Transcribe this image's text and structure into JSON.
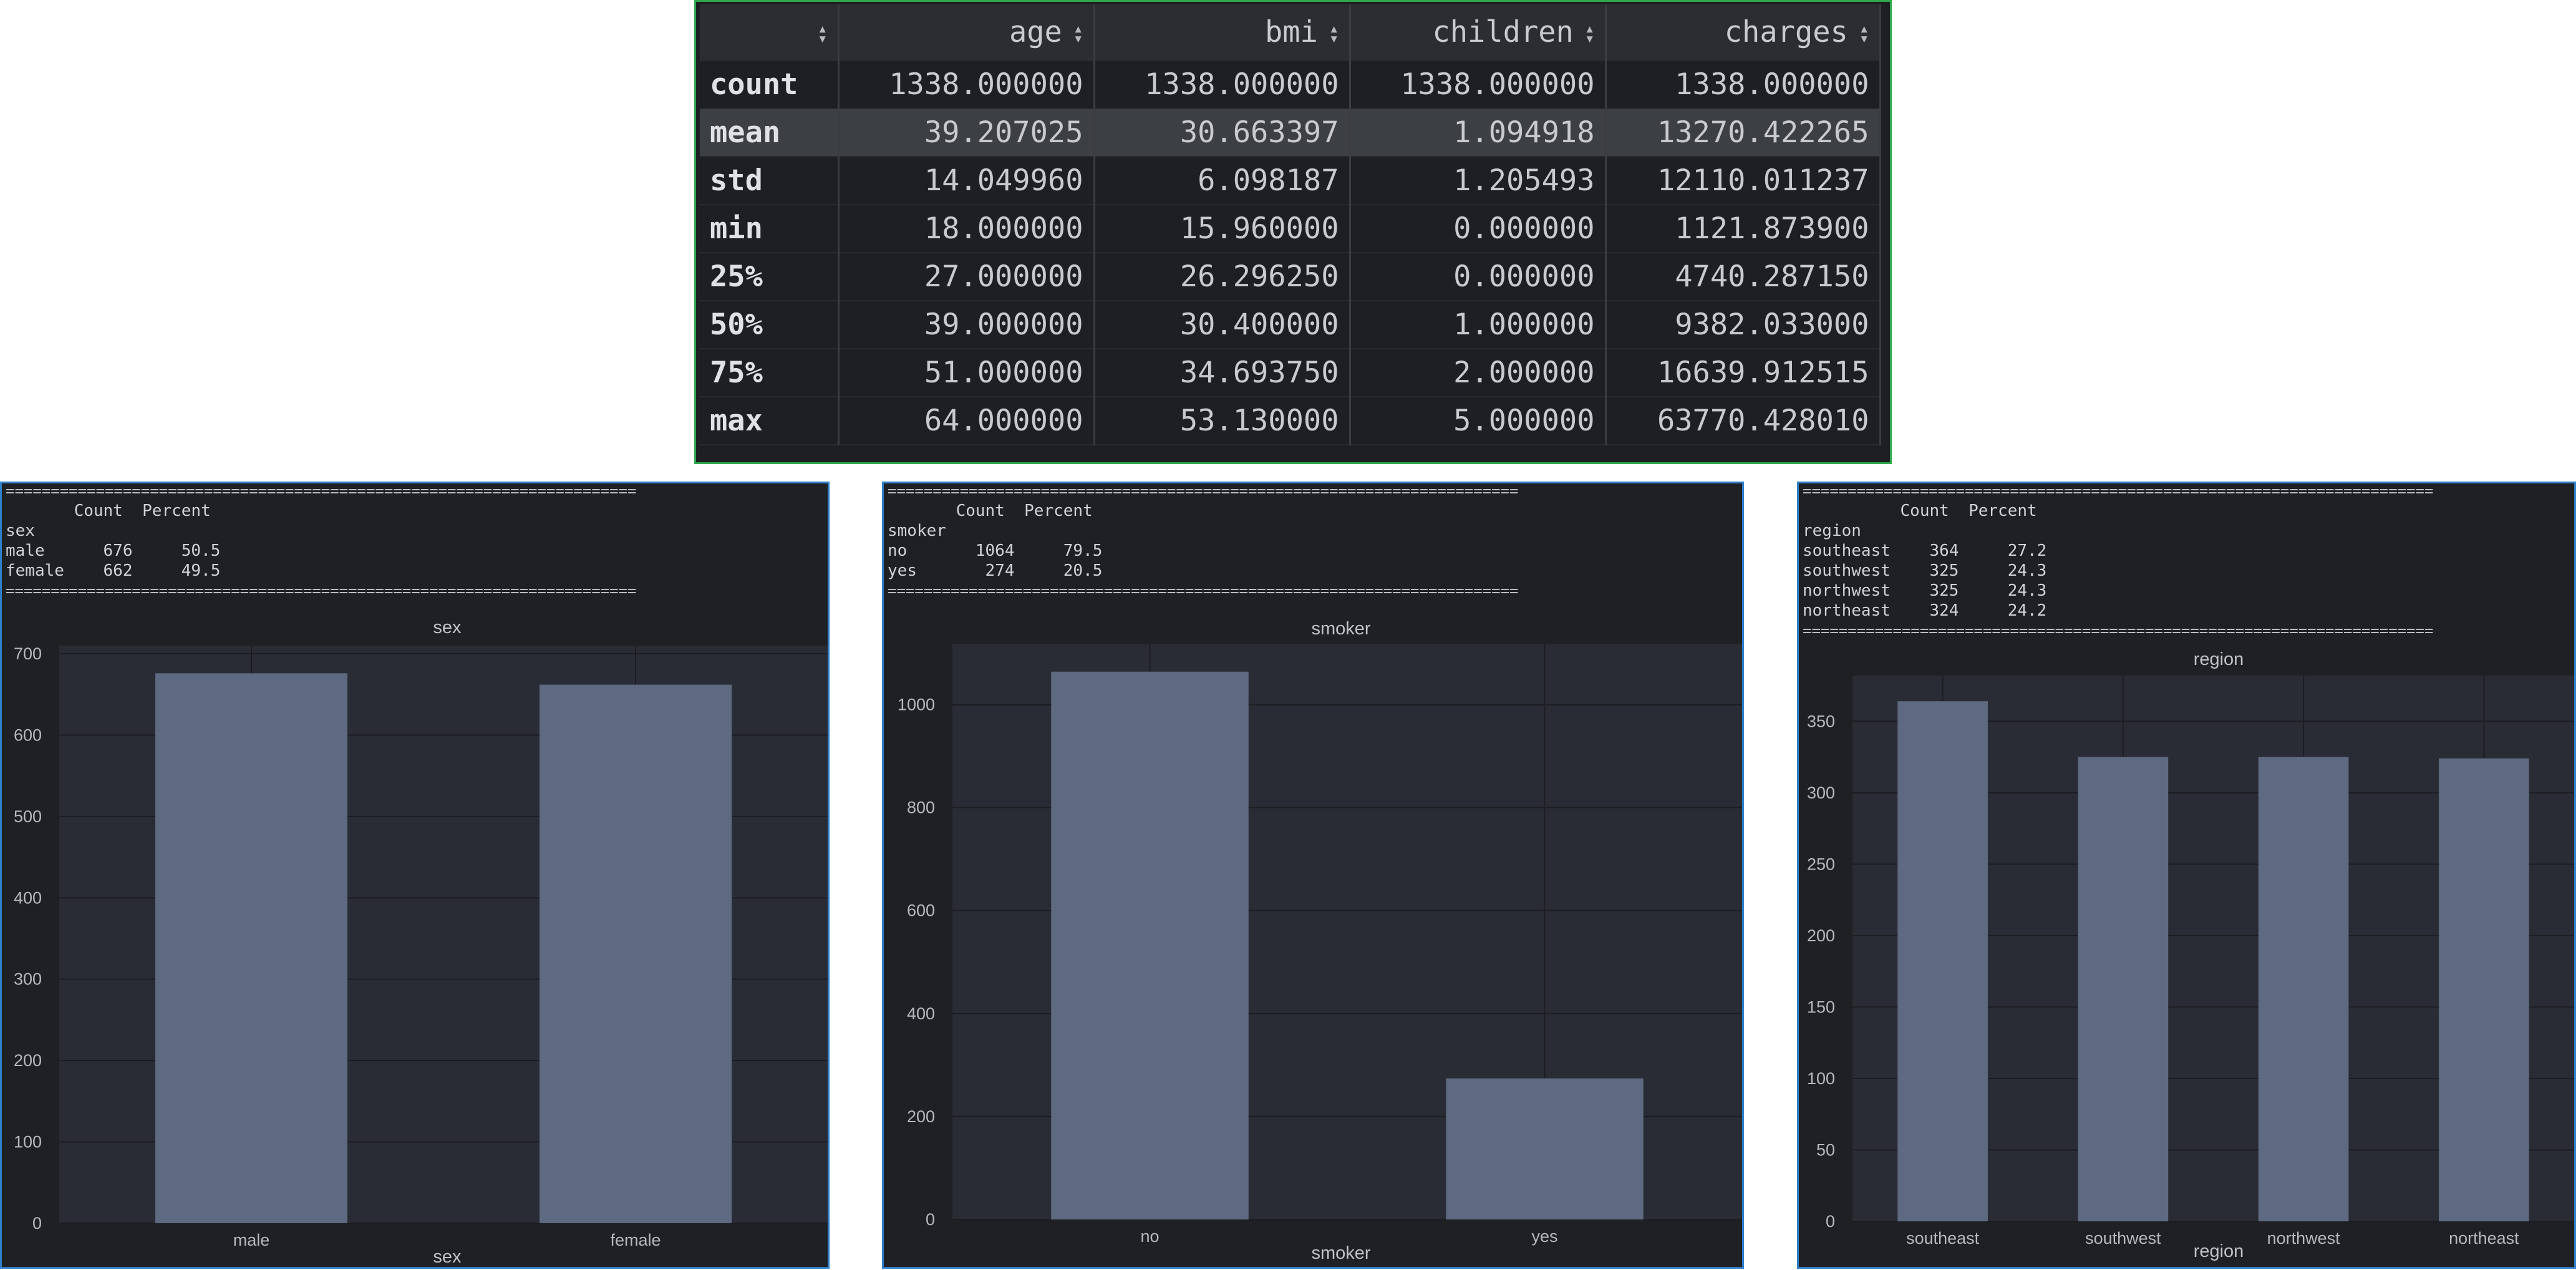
{
  "describe": {
    "columns": [
      "age",
      "bmi",
      "children",
      "charges"
    ],
    "rows": [
      {
        "label": "count",
        "values": [
          "1338.000000",
          "1338.000000",
          "1338.000000",
          "1338.000000"
        ]
      },
      {
        "label": "mean",
        "values": [
          "39.207025",
          "30.663397",
          "1.094918",
          "13270.422265"
        ]
      },
      {
        "label": "std",
        "values": [
          "14.049960",
          "6.098187",
          "1.205493",
          "12110.011237"
        ]
      },
      {
        "label": "min",
        "values": [
          "18.000000",
          "15.960000",
          "0.000000",
          "1121.873900"
        ]
      },
      {
        "label": "25%",
        "values": [
          "27.000000",
          "26.296250",
          "0.000000",
          "4740.287150"
        ]
      },
      {
        "label": "50%",
        "values": [
          "39.000000",
          "30.400000",
          "1.000000",
          "9382.033000"
        ]
      },
      {
        "label": "75%",
        "values": [
          "51.000000",
          "34.693750",
          "2.000000",
          "16639.912515"
        ]
      },
      {
        "label": "max",
        "values": [
          "64.000000",
          "53.130000",
          "5.000000",
          "63770.428010"
        ]
      }
    ],
    "highlighted_row": "mean"
  },
  "panels": [
    {
      "name": "sex",
      "separator": "======================================================================",
      "header_line": "       Count  Percent",
      "index_name": "sex",
      "text_rows": [
        "male      676     50.5",
        "female    662     49.5"
      ]
    },
    {
      "name": "smoker",
      "separator": "======================================================================",
      "header_line": "       Count  Percent",
      "index_name": "smoker",
      "text_rows": [
        "no       1064     79.5",
        "yes       274     20.5"
      ]
    },
    {
      "name": "region",
      "separator": "======================================================================",
      "header_line": "          Count  Percent",
      "index_name": "region",
      "text_rows": [
        "southeast    364     27.2",
        "southwest    325     24.3",
        "northwest    325     24.3",
        "northeast    324     24.2"
      ]
    }
  ],
  "chart_data": [
    {
      "type": "bar",
      "title": "sex",
      "xlabel": "sex",
      "ylabel": "",
      "categories": [
        "male",
        "female"
      ],
      "values": [
        676,
        662
      ],
      "ylim": [
        0,
        710
      ],
      "yticks": [
        0,
        100,
        200,
        300,
        400,
        500,
        600,
        700
      ],
      "grid": true,
      "bar_color": "#5e6a81"
    },
    {
      "type": "bar",
      "title": "smoker",
      "xlabel": "smoker",
      "ylabel": "",
      "categories": [
        "no",
        "yes"
      ],
      "values": [
        1064,
        274
      ],
      "ylim": [
        0,
        1117
      ],
      "yticks": [
        0,
        200,
        400,
        600,
        800,
        1000
      ],
      "grid": true,
      "bar_color": "#5e6a81"
    },
    {
      "type": "bar",
      "title": "region",
      "xlabel": "region",
      "ylabel": "",
      "categories": [
        "southeast",
        "southwest",
        "northwest",
        "northeast"
      ],
      "values": [
        364,
        325,
        325,
        324
      ],
      "ylim": [
        0,
        382
      ],
      "yticks": [
        0,
        50,
        100,
        150,
        200,
        250,
        300,
        350
      ],
      "grid": true,
      "bar_color": "#5e6a81"
    }
  ]
}
